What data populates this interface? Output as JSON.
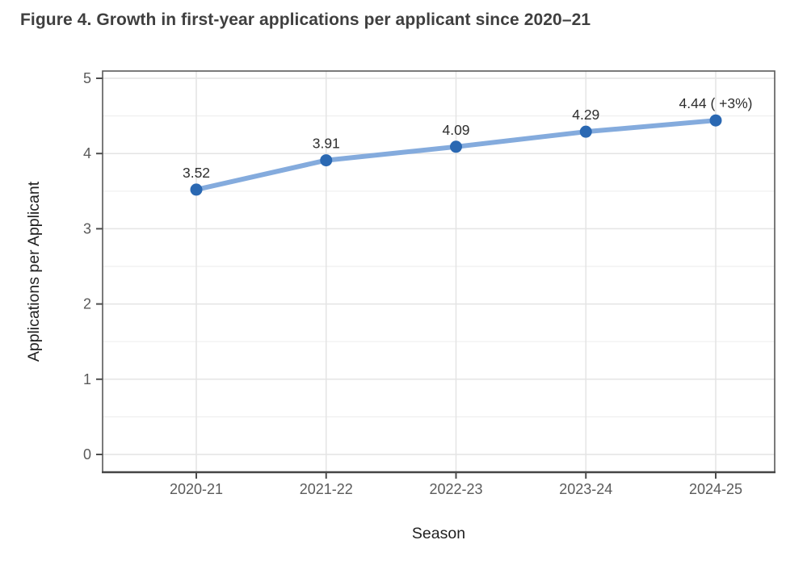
{
  "title": "Figure 4. Growth in first-year applications per applicant since 2020–21",
  "chart_data": {
    "type": "line",
    "categories": [
      "2020-21",
      "2021-22",
      "2022-23",
      "2023-24",
      "2024-25"
    ],
    "values": [
      3.52,
      3.91,
      4.09,
      4.29,
      4.44
    ],
    "point_labels": [
      "3.52",
      "3.91",
      "4.09",
      "4.29",
      "4.44 ( +3%)"
    ],
    "series_name": "Applications per Applicant",
    "xlabel": "Season",
    "ylabel": "Applications per Applicant",
    "ylim": [
      0,
      5
    ],
    "yticks": [
      0,
      1,
      2,
      3,
      4,
      5
    ],
    "grid": "horizontal major+minor, vertical major only",
    "legend": "none",
    "colors": {
      "line": "#84abdd",
      "point": "#2a68b2",
      "grid_major": "#e4e4e4",
      "grid_minor": "#efefef",
      "panel_border": "#595959",
      "axis_line": "#454545",
      "tick_mark": "#4d4d4d",
      "axis_text": "#5a5a5a",
      "axis_title": "#1f1f1f",
      "label_text": "#2e2e2e",
      "title_text": "#3f3f3f",
      "background": "#ffffff"
    }
  }
}
